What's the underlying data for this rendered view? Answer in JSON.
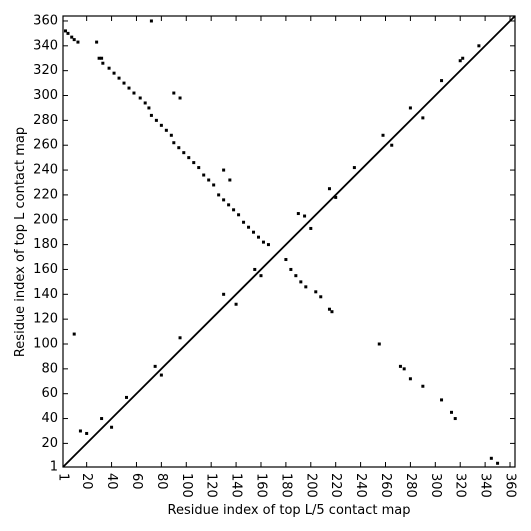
{
  "chart_data": {
    "type": "scatter",
    "xlabel": "Residue index of top L/5 contact map",
    "ylabel": "Residue index of top L contact map",
    "xlim": [
      1,
      364
    ],
    "ylim": [
      1,
      364
    ],
    "xticks": [
      1,
      20,
      40,
      60,
      80,
      100,
      120,
      140,
      160,
      180,
      200,
      220,
      240,
      260,
      280,
      300,
      320,
      340,
      360
    ],
    "yticks": [
      1,
      20,
      40,
      60,
      80,
      100,
      120,
      140,
      160,
      180,
      200,
      220,
      240,
      260,
      280,
      300,
      320,
      340,
      360
    ],
    "lines": [
      {
        "color": "#000000",
        "x": [
          1,
          364
        ],
        "y": [
          1,
          364
        ]
      }
    ],
    "series": [
      {
        "color": "#000000",
        "x": [
          3,
          5,
          8,
          10,
          13,
          30,
          33,
          38,
          42,
          46,
          50,
          54,
          58,
          63,
          67,
          70,
          72,
          76,
          80,
          84,
          88,
          90,
          94,
          98,
          102,
          106,
          110,
          114,
          118,
          122,
          126,
          130,
          134,
          138,
          142,
          146,
          150,
          154,
          158,
          162,
          166,
          28,
          32,
          72,
          90,
          95,
          130,
          135,
          190,
          195,
          200,
          215,
          220,
          235,
          258,
          265,
          280,
          290,
          305,
          320,
          322,
          335,
          10,
          15,
          20,
          32,
          40,
          52,
          75,
          80,
          95,
          130,
          140,
          155,
          160,
          180,
          184,
          188,
          192,
          196,
          204,
          208,
          215,
          217,
          255,
          272,
          275,
          280,
          290,
          305,
          313,
          316,
          345,
          350
        ],
        "y": [
          352,
          350,
          347,
          345,
          343,
          330,
          326,
          322,
          318,
          314,
          310,
          306,
          302,
          298,
          294,
          290,
          284,
          280,
          276,
          272,
          268,
          262,
          258,
          254,
          250,
          246,
          242,
          236,
          232,
          228,
          220,
          216,
          212,
          208,
          204,
          198,
          194,
          190,
          186,
          182,
          180,
          343,
          330,
          360,
          302,
          298,
          240,
          232,
          205,
          203,
          193,
          225,
          218,
          242,
          268,
          260,
          290,
          282,
          312,
          328,
          330,
          340,
          108,
          30,
          28,
          40,
          33,
          57,
          82,
          75,
          105,
          140,
          132,
          160,
          155,
          168,
          160,
          155,
          150,
          146,
          142,
          138,
          128,
          126,
          100,
          82,
          80,
          72,
          66,
          55,
          45,
          40,
          8,
          4
        ]
      }
    ]
  }
}
